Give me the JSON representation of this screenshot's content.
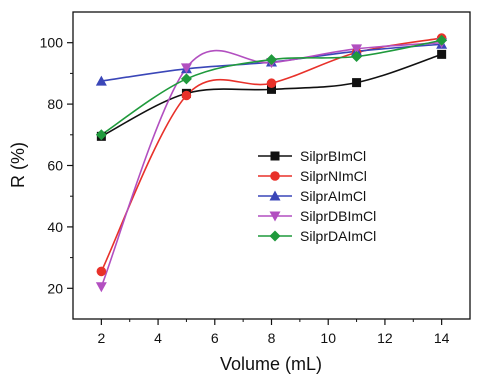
{
  "chart_data": {
    "type": "line",
    "xlabel": "Volume (mL)",
    "ylabel": "R (%)",
    "xlim": [
      1,
      15
    ],
    "ylim": [
      10,
      110
    ],
    "xticks": [
      2,
      4,
      6,
      8,
      10,
      12,
      14
    ],
    "yticks": [
      20,
      40,
      60,
      80,
      100
    ],
    "x": [
      2,
      5,
      8,
      11,
      14
    ],
    "grid": false,
    "legend_position": "center-right",
    "series": [
      {
        "name": "SilprBImCl",
        "values": [
          69.5,
          83.5,
          84.8,
          87.0,
          96.2
        ],
        "color": "#111111",
        "marker": "square"
      },
      {
        "name": "SilprNImCl",
        "values": [
          25.5,
          82.8,
          86.8,
          96.8,
          101.5
        ],
        "color": "#e8312a",
        "marker": "circle"
      },
      {
        "name": "SilprAImCl",
        "values": [
          87.5,
          91.5,
          93.7,
          97.2,
          99.5
        ],
        "color": "#3a46b8",
        "marker": "triangle-up"
      },
      {
        "name": "SilprDBImCl",
        "values": [
          20.5,
          91.8,
          93.5,
          98.0,
          100.0
        ],
        "color": "#b24fc0",
        "marker": "triangle-down"
      },
      {
        "name": "SilprDAImCl",
        "values": [
          70.0,
          88.2,
          94.5,
          95.5,
          100.8
        ],
        "color": "#1f9a3c",
        "marker": "diamond"
      }
    ]
  }
}
